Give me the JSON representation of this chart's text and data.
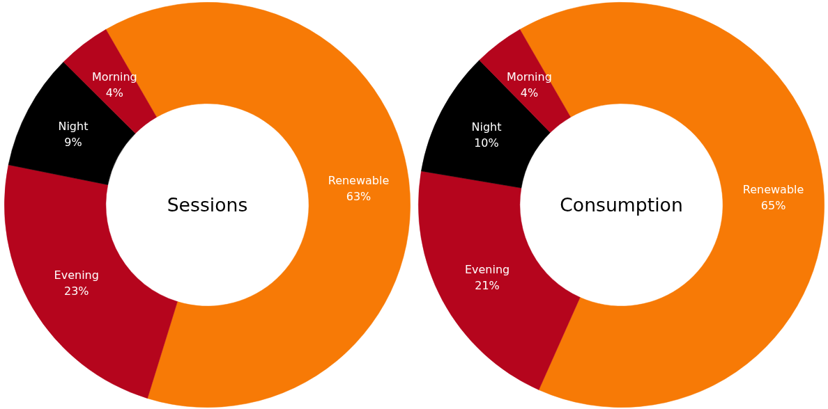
{
  "chart_data": [
    {
      "type": "donut",
      "title": "Sessions",
      "categories": [
        "Renewable",
        "Evening",
        "Night",
        "Morning"
      ],
      "values": [
        63.1,
        23.4,
        9.3,
        4.2
      ],
      "value_labels": [
        "63%",
        "23%",
        "9%",
        "4%"
      ],
      "colors": [
        "#f77a06",
        "#b5051d",
        "#000000",
        "#b5051d"
      ]
    },
    {
      "type": "donut",
      "title": "Consumption",
      "categories": [
        "Renewable",
        "Evening",
        "Night",
        "Morning"
      ],
      "values": [
        65,
        21,
        10,
        4
      ],
      "value_labels": [
        "65%",
        "21%",
        "10%",
        "4%"
      ],
      "colors": [
        "#f77a06",
        "#b5051d",
        "#000000",
        "#b5051d"
      ]
    }
  ]
}
